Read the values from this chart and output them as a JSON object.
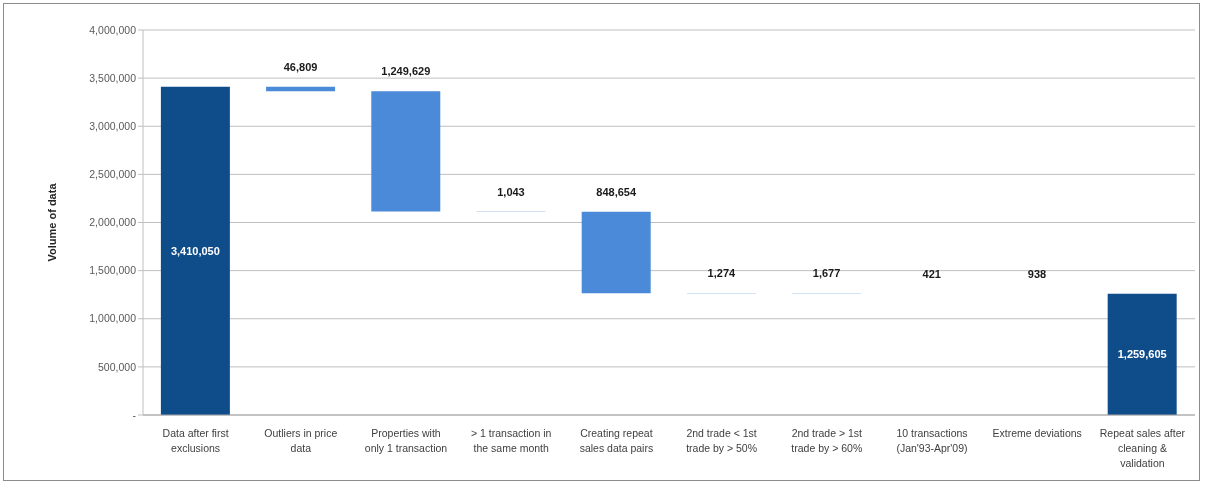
{
  "chart_data": {
    "type": "bar",
    "ylabel": "Volume of data",
    "categories": [
      "Data after first exclusions",
      "Outliers in price data",
      "Properties with only 1 transaction",
      "> 1 transaction in the same month",
      "Creating repeat sales data pairs",
      "2nd trade < 1st trade by > 50%",
      "2nd trade > 1st trade by > 60%",
      "10 transactions (Jan'93-Apr'09)",
      "Extreme deviations",
      "Repeat sales after cleaning & validation"
    ],
    "values": [
      3410050,
      46809,
      1249629,
      1043,
      848654,
      1274,
      1677,
      421,
      938,
      1259605
    ],
    "base": [
      0,
      3363241,
      2113612,
      2112569,
      1263915,
      1262641,
      1260964,
      1260543,
      1259605,
      0
    ],
    "colors": [
      "#0f4c8a",
      "#4a8ad8",
      "#4a8ad8",
      "#4a8ad8",
      "#4a8ad8",
      "#4a8ad8",
      "#4a8ad8",
      "#4a8ad8",
      "#4a8ad8",
      "#0f4c8a"
    ],
    "value_labels": [
      "3,410,050",
      "46,809",
      "1,249,629",
      "1,043",
      "848,654",
      "1,274",
      "1,677",
      "421",
      "938",
      "1,259,605"
    ],
    "ylim": [
      0,
      4000000
    ],
    "yticks": [
      {
        "value": 0,
        "label": "-"
      },
      {
        "value": 500000,
        "label": "500,000"
      },
      {
        "value": 1000000,
        "label": "1,000,000"
      },
      {
        "value": 1500000,
        "label": "1,500,000"
      },
      {
        "value": 2000000,
        "label": "2,000,000"
      },
      {
        "value": 2500000,
        "label": "2,500,000"
      },
      {
        "value": 3000000,
        "label": "3,000,000"
      },
      {
        "value": 3500000,
        "label": "3,500,000"
      },
      {
        "value": 4000000,
        "label": "4,000,000"
      }
    ],
    "grid": "y"
  }
}
